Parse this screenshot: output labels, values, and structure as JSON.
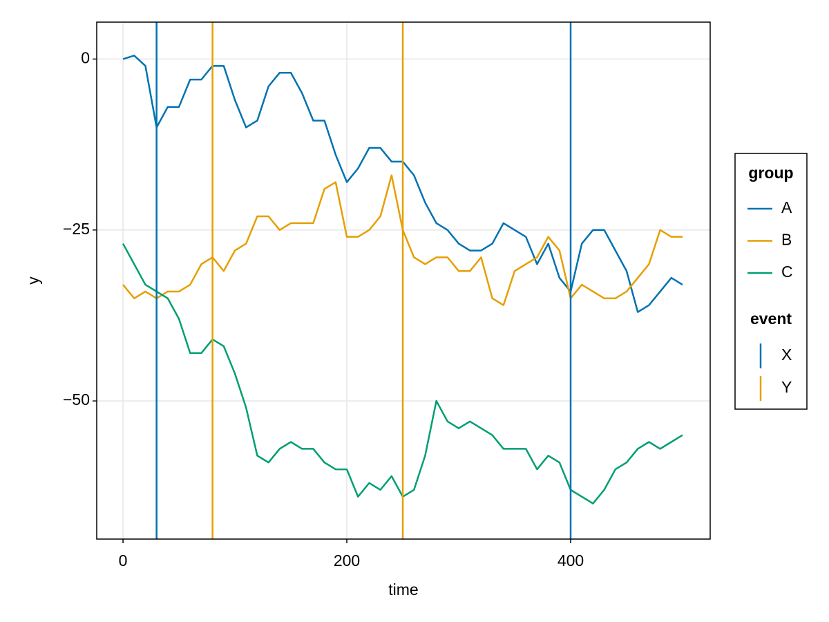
{
  "chart_data": {
    "type": "line",
    "xlabel": "time",
    "ylabel": "y",
    "x": [
      0,
      10,
      20,
      30,
      40,
      50,
      60,
      70,
      80,
      90,
      100,
      110,
      120,
      130,
      140,
      150,
      160,
      170,
      180,
      190,
      200,
      210,
      220,
      230,
      240,
      250,
      260,
      270,
      280,
      290,
      300,
      310,
      320,
      330,
      340,
      350,
      360,
      370,
      380,
      390,
      400,
      410,
      420,
      430,
      440,
      450,
      460,
      470,
      480,
      490,
      500
    ],
    "series": [
      {
        "name": "A",
        "color": "#0072b2",
        "values": [
          0,
          0.5,
          -1,
          -10,
          -7,
          -7,
          -3,
          -3,
          -1,
          -1,
          -6,
          -10,
          -9,
          -4,
          -2,
          -2,
          -5,
          -9,
          -9,
          -14,
          -18,
          -16,
          -13,
          -13,
          -15,
          -15,
          -17,
          -21,
          -24,
          -25,
          -27,
          -28,
          -28,
          -27,
          -24,
          -25,
          -26,
          -30,
          -27,
          -32,
          -34,
          -27,
          -25,
          -25,
          -28,
          -31,
          -37,
          -36,
          -34,
          -32,
          -33
        ]
      },
      {
        "name": "B",
        "color": "#e69f00",
        "values": [
          -33,
          -35,
          -34,
          -35,
          -34,
          -34,
          -33,
          -30,
          -29,
          -31,
          -28,
          -27,
          -23,
          -23,
          -25,
          -24,
          -24,
          -24,
          -19,
          -18,
          -26,
          -26,
          -25,
          -23,
          -17,
          -25,
          -29,
          -30,
          -29,
          -29,
          -31,
          -31,
          -29,
          -35,
          -36,
          -31,
          -30,
          -29,
          -26,
          -28,
          -35,
          -33,
          -34,
          -35,
          -35,
          -34,
          -32,
          -30,
          -25,
          -26,
          -26
        ]
      },
      {
        "name": "C",
        "color": "#009e73",
        "values": [
          -27,
          -30,
          -33,
          -34,
          -35,
          -38,
          -43,
          -43,
          -41,
          -42,
          -46,
          -51,
          -58,
          -59,
          -57,
          -56,
          -57,
          -57,
          -59,
          -60,
          -60,
          -64,
          -62,
          -63,
          -61,
          -64,
          -63,
          -58,
          -50,
          -53,
          -54,
          -53,
          -54,
          -55,
          -57,
          -57,
          -57,
          -60,
          -58,
          -59,
          -63,
          -64,
          -65,
          -63,
          -60,
          -59,
          -57,
          -56,
          -57,
          -56,
          -55
        ]
      }
    ],
    "events": [
      {
        "name": "X",
        "color": "#0072b2",
        "x": [
          30,
          400
        ]
      },
      {
        "name": "Y",
        "color": "#e69f00",
        "x": [
          80,
          250
        ]
      }
    ],
    "xlim": [
      -23.5,
      524.7
    ],
    "xticks": [
      0,
      200,
      400
    ],
    "ylim": [
      -70.2,
      5.4
    ],
    "yticks": [
      {
        "value": -50,
        "label": "−50"
      },
      {
        "value": -25,
        "label": "−25"
      },
      0
    ],
    "grid": true,
    "legend": {
      "position": "right",
      "series_title": "group",
      "events_title": "event"
    }
  }
}
